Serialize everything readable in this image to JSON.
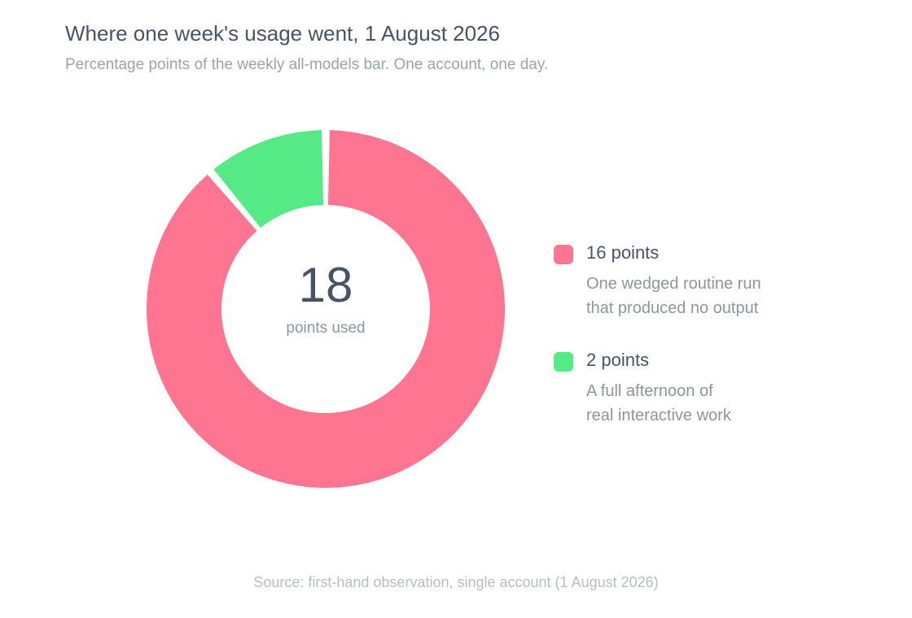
{
  "chart_data": {
    "type": "pie",
    "variant": "donut",
    "title": "Where one week's usage went, 1 August 2026",
    "subtitle": "Percentage points of the weekly all-models bar. One account, one day.",
    "center": {
      "value": "18",
      "label": "points used"
    },
    "slices": [
      {
        "label": "16 points",
        "value": 16,
        "description": [
          "One wedged routine run",
          "that produced no output"
        ],
        "color": "#fe7591"
      },
      {
        "label": "2 points",
        "value": 2,
        "description": [
          "A full afternoon of",
          "real interactive work"
        ],
        "color": "#55ea85"
      }
    ],
    "legend_position": "right",
    "source": "Source: first-hand observation, single account (1 August 2026)"
  }
}
